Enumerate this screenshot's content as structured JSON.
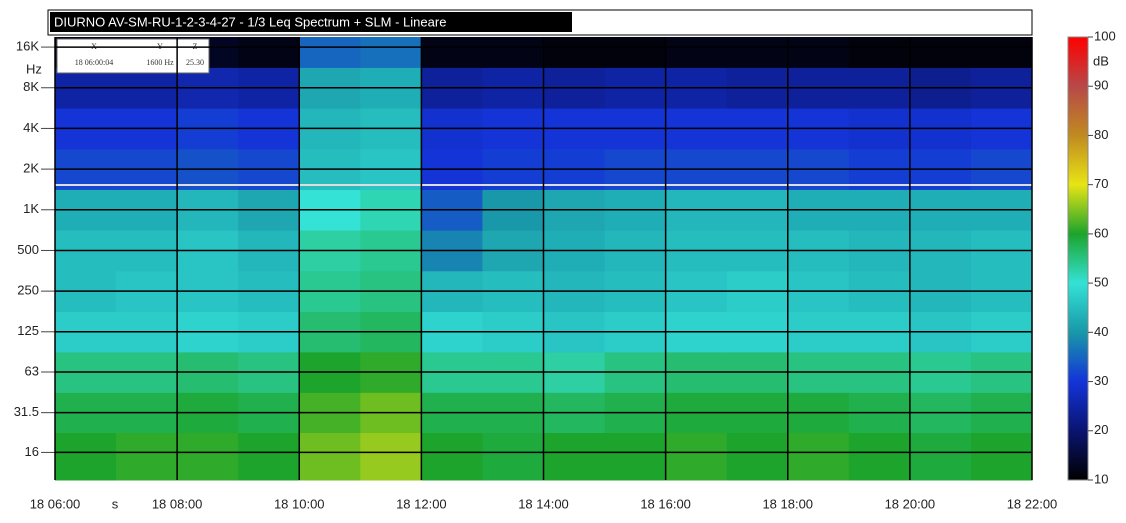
{
  "chart_data": {
    "type": "heatmap",
    "title": "DIURNO AV-SM-RU-1-2-3-4-27 - 1/3 Leq Spectrum + SLM - Lineare",
    "x_unit": "s",
    "y_unit": "Hz",
    "z_unit": "dB",
    "cursor": {
      "x_label": "X",
      "y_label": "Y",
      "z_label": "Z",
      "x": "18 06:00:04",
      "y": "1600 Hz",
      "z": "25.30"
    },
    "bins": [
      6,
      7,
      8,
      9,
      10,
      11,
      12,
      13,
      14,
      15,
      16,
      17,
      18,
      19,
      20,
      21,
      22
    ],
    "xlim": [
      6,
      22
    ],
    "xticks": [
      {
        "value": 6,
        "label": "18 06:00"
      },
      {
        "value": 8,
        "label": "18 08:00"
      },
      {
        "value": 10,
        "label": "18 10:00"
      },
      {
        "value": 12,
        "label": "18 12:00"
      },
      {
        "value": 14,
        "label": "18 14:00"
      },
      {
        "value": 16,
        "label": "18 16:00"
      },
      {
        "value": 18,
        "label": "18 18:00"
      },
      {
        "value": 20,
        "label": "18 20:00"
      },
      {
        "value": 22,
        "label": "18 22:00"
      }
    ],
    "log_y": true,
    "ylim": [
      10,
      19000
    ],
    "y": [
      16,
      31.5,
      63,
      125,
      250,
      500,
      1000,
      2000,
      4000,
      8000,
      16000
    ],
    "yticks": [
      {
        "value": 16000,
        "label": "16K"
      },
      {
        "value": 8000,
        "label": "8K"
      },
      {
        "value": 4000,
        "label": "4K"
      },
      {
        "value": 2000,
        "label": "2K"
      },
      {
        "value": 1000,
        "label": "1K"
      },
      500,
      250,
      125,
      63,
      31.5,
      16
    ],
    "z": [
      [
        60,
        61,
        61,
        60,
        64,
        66,
        60,
        59,
        60,
        60,
        61,
        60,
        61,
        60,
        59,
        60
      ],
      [
        58,
        58,
        59,
        58,
        62,
        64,
        58,
        58,
        57,
        58,
        59,
        59,
        59,
        58,
        57,
        58
      ],
      [
        55,
        55,
        56,
        55,
        60,
        61,
        54,
        54,
        53,
        55,
        56,
        56,
        55,
        55,
        54,
        55
      ],
      [
        47,
        47,
        48,
        47,
        56,
        57,
        48,
        47,
        46,
        47,
        48,
        48,
        47,
        47,
        46,
        47
      ],
      [
        45,
        46,
        46,
        45,
        54,
        55,
        44,
        45,
        44,
        45,
        46,
        47,
        46,
        45,
        44,
        45
      ],
      [
        45,
        45,
        46,
        44,
        53,
        54,
        38,
        42,
        43,
        44,
        45,
        45,
        45,
        44,
        44,
        45
      ],
      [
        43,
        43,
        44,
        42,
        50,
        52,
        34,
        40,
        42,
        43,
        44,
        44,
        43,
        43,
        43,
        43
      ],
      [
        32,
        32,
        33,
        32,
        45,
        46,
        30,
        31,
        31,
        32,
        32,
        32,
        32,
        31,
        31,
        32
      ],
      [
        30,
        30,
        31,
        30,
        44,
        45,
        29,
        30,
        30,
        30,
        30,
        30,
        30,
        29,
        29,
        30
      ],
      [
        25,
        25,
        26,
        25,
        42,
        43,
        24,
        25,
        24,
        25,
        25,
        24,
        24,
        24,
        23,
        24
      ],
      [
        12,
        12,
        13,
        12,
        35,
        36,
        12,
        12,
        11,
        11,
        12,
        12,
        12,
        11,
        11,
        11
      ]
    ],
    "zlim": [
      10,
      100
    ],
    "zticks": [
      10,
      20,
      30,
      40,
      50,
      60,
      70,
      80,
      90,
      100
    ],
    "colors": [
      "#000000",
      "#0a1470",
      "#1434d8",
      "#1898a8",
      "#34e2d6",
      "#1ca42c",
      "#e8e414",
      "#c08a20",
      "#b84848",
      "#ff0000"
    ],
    "grid": true,
    "grid_color": "#000000"
  }
}
